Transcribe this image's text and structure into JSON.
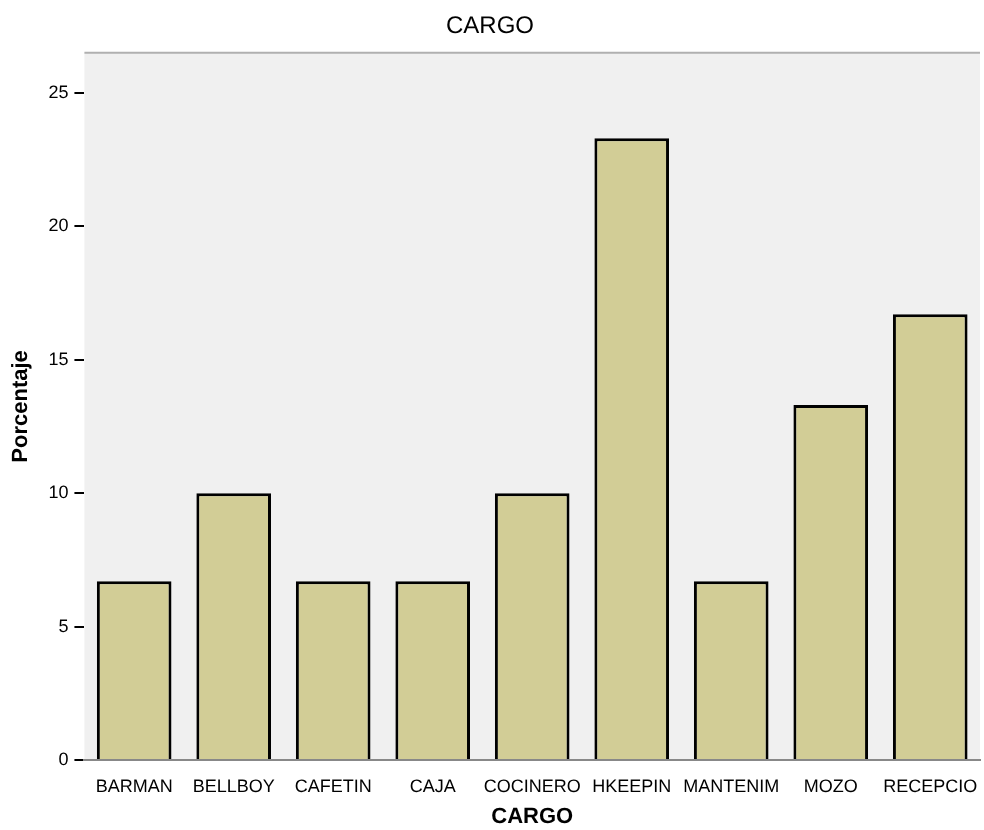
{
  "chart_data": {
    "type": "bar",
    "title": "CARGO",
    "xlabel": "CARGO",
    "ylabel": "Porcentaje",
    "categories": [
      "BARMAN",
      "BELLBOY",
      "CAFETIN",
      "CAJA",
      "COCINERO",
      "HKEEPIN",
      "MANTENIM",
      "MOZO",
      "RECEPCIO"
    ],
    "values": [
      6.7,
      10,
      6.7,
      6.7,
      10,
      23.3,
      6.7,
      13.3,
      16.7
    ],
    "color": "#d2cd96",
    "ylim": [
      0,
      26.5
    ],
    "yticks": [
      0,
      5,
      10,
      15,
      20,
      25
    ],
    "grid": false,
    "legend": false
  }
}
